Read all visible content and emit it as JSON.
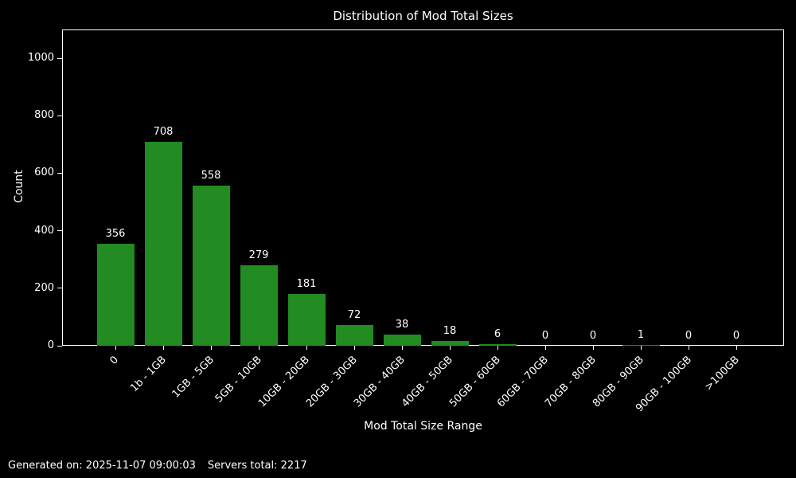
{
  "title": "Distribution of Mod Total Sizes",
  "footer": {
    "generated": "Generated on: 2025-11-07 09:00:03",
    "servers_total": "Servers total: 2217"
  },
  "chart_data": {
    "type": "bar",
    "title": "Distribution of Mod Total Sizes",
    "xlabel": "Mod Total Size Range",
    "ylabel": "Count",
    "categories": [
      "0",
      "1b - 1GB",
      "1GB - 5GB",
      "5GB - 10GB",
      "10GB - 20GB",
      "20GB - 30GB",
      "30GB - 40GB",
      "40GB - 50GB",
      "50GB - 60GB",
      "60GB - 70GB",
      "70GB - 80GB",
      "80GB - 90GB",
      "90GB - 100GB",
      ">100GB"
    ],
    "values": [
      356,
      708,
      558,
      279,
      181,
      72,
      38,
      18,
      6,
      0,
      0,
      1,
      0,
      0
    ],
    "bar_labels": [
      356,
      708,
      558,
      279,
      181,
      72,
      38,
      18,
      6,
      0,
      0,
      1,
      0,
      0
    ],
    "yticks": [
      0,
      200,
      400,
      600,
      800,
      1000
    ],
    "ylim": [
      0,
      1100
    ],
    "xtick_rotation": 45,
    "grid": false,
    "legend": null,
    "colors": {
      "bar": "#228B22",
      "background": "#000000",
      "text": "#ffffff",
      "spine": "#ffffff"
    }
  }
}
